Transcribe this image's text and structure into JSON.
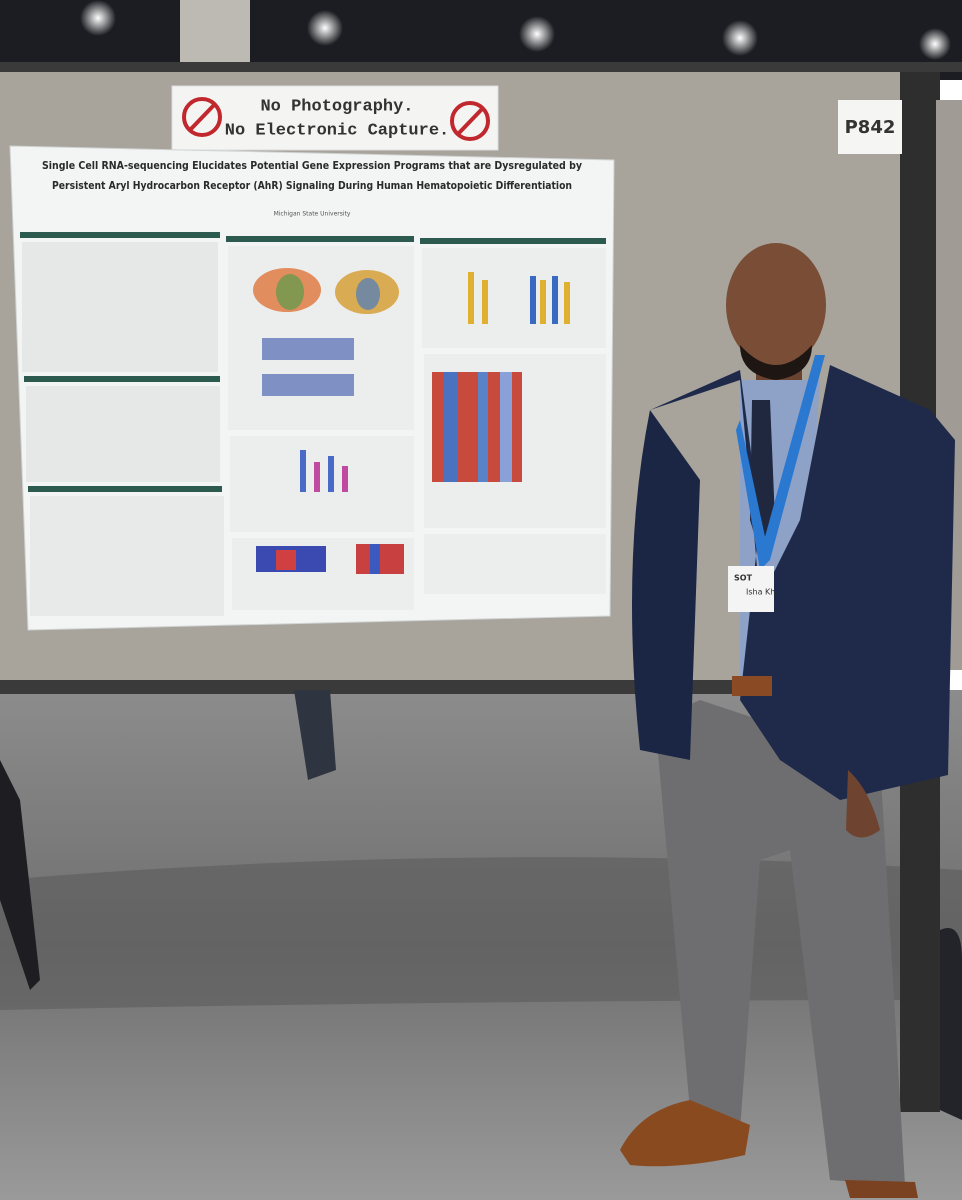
{
  "sign": {
    "lines": [
      "No Photography.",
      "No Electronic Capture."
    ]
  },
  "booth_number": "P842",
  "poster": {
    "title_lines": [
      "Single Cell RNA-sequencing Elucidates Potential Gene Expression Programs that are Dysregulated by",
      "Persistent Aryl Hydrocarbon Receptor (AhR) Signaling During Human Hematopoietic Differentiation"
    ],
    "affiliation": "Michigan State University"
  },
  "badge": {
    "event": "SOT",
    "name": "Isha Kh"
  }
}
